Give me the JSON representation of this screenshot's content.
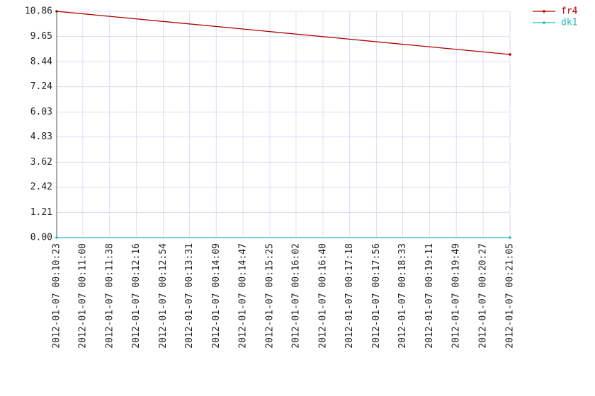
{
  "chart_data": {
    "type": "line",
    "x": [
      "2012-01-07 00:10:23",
      "2012-01-07 00:21:05"
    ],
    "xlim": [
      "2012-01-07 00:10:23",
      "2012-01-07 00:21:05"
    ],
    "xticks": [
      "2012-01-07 00:10:23",
      "2012-01-07 00:11:00",
      "2012-01-07 00:11:38",
      "2012-01-07 00:12:16",
      "2012-01-07 00:12:54",
      "2012-01-07 00:13:31",
      "2012-01-07 00:14:09",
      "2012-01-07 00:14:47",
      "2012-01-07 00:15:25",
      "2012-01-07 00:16:02",
      "2012-01-07 00:16:40",
      "2012-01-07 00:17:18",
      "2012-01-07 00:17:56",
      "2012-01-07 00:18:33",
      "2012-01-07 00:19:11",
      "2012-01-07 00:19:49",
      "2012-01-07 00:20:27",
      "2012-01-07 00:21:05"
    ],
    "ylim": [
      0,
      10.86
    ],
    "yticks": [
      {
        "value": 0,
        "label": "0.00"
      },
      1.21,
      2.42,
      3.62,
      4.83,
      6.03,
      7.24,
      8.44,
      9.65,
      10.86
    ],
    "grid": true,
    "legend": "top-right",
    "series": [
      {
        "name": "fr4",
        "color": "#b00000",
        "values": [
          10.86,
          8.79
        ]
      },
      {
        "name": "dk1",
        "color": "#20b8b8",
        "values": [
          0,
          0
        ]
      }
    ]
  }
}
